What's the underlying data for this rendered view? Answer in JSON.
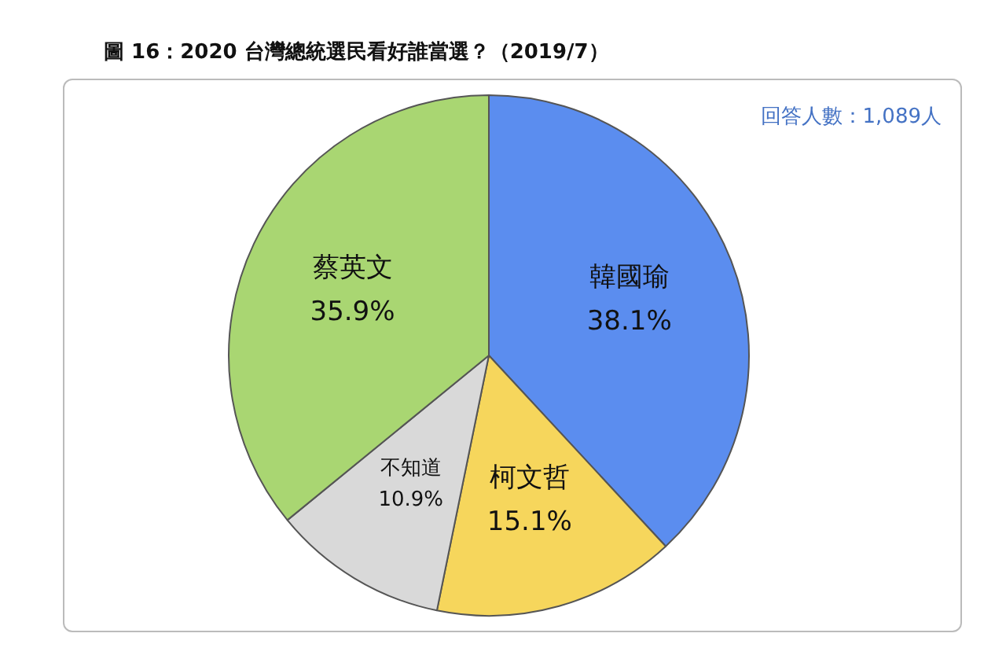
{
  "chart_data": {
    "type": "pie",
    "title": "圖 16：2020 台灣總統選民看好誰當選？（2019/7）",
    "annotations": [
      "回答人數：1,089人"
    ],
    "categories": [
      "韓國瑜",
      "柯文哲",
      "不知道",
      "蔡英文"
    ],
    "values": [
      38.1,
      15.1,
      10.9,
      35.9
    ],
    "colors": [
      "#5b8def",
      "#f6d65c",
      "#d9d9d9",
      "#a9d672"
    ],
    "value_labels": [
      "38.1%",
      "15.1%",
      "10.9%",
      "35.9%"
    ],
    "legend": false
  }
}
